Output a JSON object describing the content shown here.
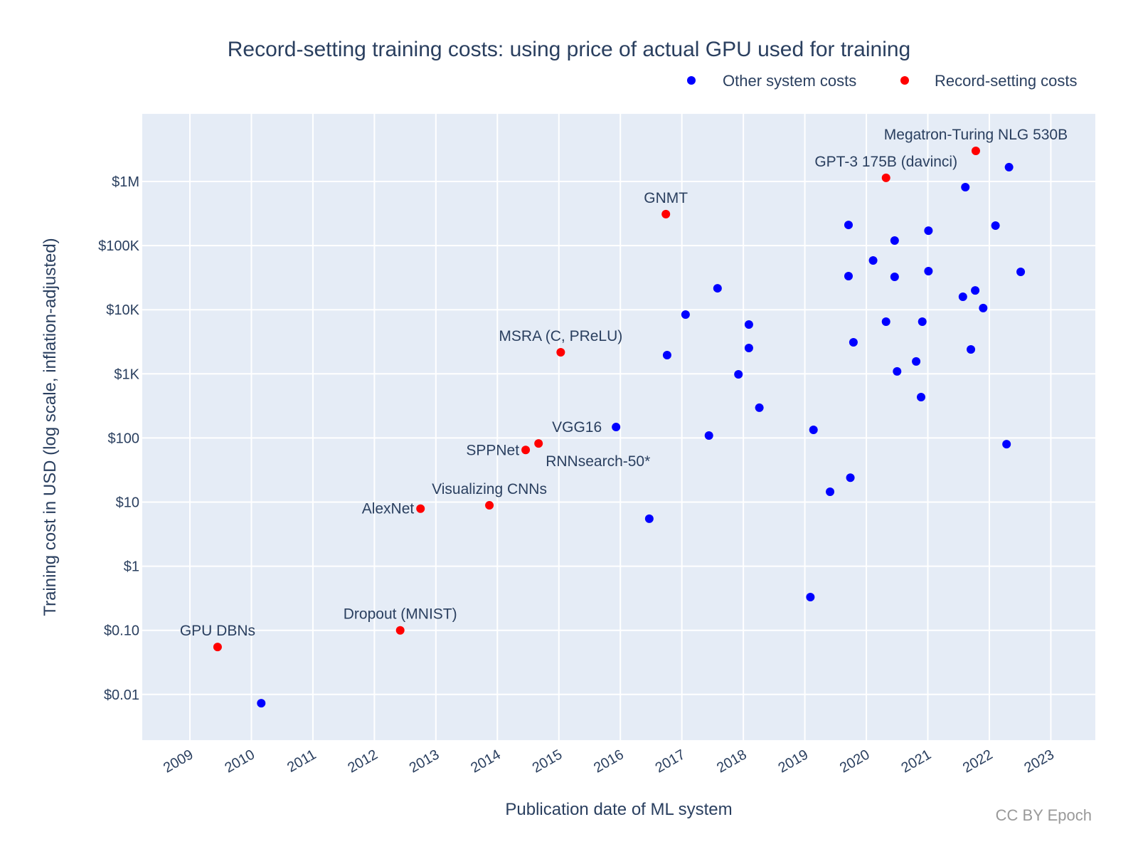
{
  "chart_data": {
    "type": "scatter",
    "title": "Record-setting training costs: using price of actual GPU used for training",
    "xlabel": "Publication date of ML system",
    "ylabel": "Training cost in USD (log scale, inflation-adjusted)",
    "y_scale": "log",
    "xlim": [
      2008.2,
      2023.7
    ],
    "ylim": [
      0.0023,
      9500000
    ],
    "grid": true,
    "legend_position": "top-right",
    "x_ticks": [
      2009,
      2010,
      2011,
      2012,
      2013,
      2014,
      2015,
      2016,
      2017,
      2018,
      2019,
      2020,
      2021,
      2022,
      2023
    ],
    "x_tick_labels": [
      "2009",
      "2010",
      "2011",
      "2012",
      "2013",
      "2014",
      "2015",
      "2016",
      "2017",
      "2018",
      "2019",
      "2020",
      "2021",
      "2022",
      "2023"
    ],
    "y_ticks": [
      0.01,
      0.1,
      1,
      10,
      100,
      1000,
      10000,
      100000,
      1000000
    ],
    "y_tick_labels": [
      "$0.01",
      "$0.10",
      "$1",
      "$10",
      "$100",
      "$1K",
      "$10K",
      "$100K",
      "$1M"
    ],
    "credit": "CC BY Epoch",
    "series": [
      {
        "name": "Other system costs",
        "color": "#0000ff",
        "points": [
          {
            "x": 2010.16,
            "y": 0.0073
          },
          {
            "x": 2015.93,
            "y": 148
          },
          {
            "x": 2016.47,
            "y": 5.5
          },
          {
            "x": 2016.76,
            "y": 1960
          },
          {
            "x": 2017.06,
            "y": 8400
          },
          {
            "x": 2017.44,
            "y": 109
          },
          {
            "x": 2017.58,
            "y": 21600
          },
          {
            "x": 2017.92,
            "y": 982
          },
          {
            "x": 2018.09,
            "y": 5870
          },
          {
            "x": 2018.09,
            "y": 2530
          },
          {
            "x": 2018.26,
            "y": 296
          },
          {
            "x": 2019.09,
            "y": 0.33
          },
          {
            "x": 2019.14,
            "y": 134
          },
          {
            "x": 2019.41,
            "y": 14.5
          },
          {
            "x": 2019.74,
            "y": 24
          },
          {
            "x": 2019.71,
            "y": 210000
          },
          {
            "x": 2019.71,
            "y": 33400
          },
          {
            "x": 2019.79,
            "y": 3100
          },
          {
            "x": 2020.11,
            "y": 58600
          },
          {
            "x": 2020.32,
            "y": 6510
          },
          {
            "x": 2020.46,
            "y": 120000
          },
          {
            "x": 2020.46,
            "y": 32600
          },
          {
            "x": 2020.5,
            "y": 1090
          },
          {
            "x": 2020.81,
            "y": 1560
          },
          {
            "x": 2020.89,
            "y": 434
          },
          {
            "x": 2020.91,
            "y": 6510
          },
          {
            "x": 2021.01,
            "y": 171000
          },
          {
            "x": 2021.01,
            "y": 40000
          },
          {
            "x": 2021.57,
            "y": 15900
          },
          {
            "x": 2021.61,
            "y": 815000
          },
          {
            "x": 2021.7,
            "y": 2400
          },
          {
            "x": 2021.77,
            "y": 20000
          },
          {
            "x": 2021.9,
            "y": 10600
          },
          {
            "x": 2022.1,
            "y": 205000
          },
          {
            "x": 2022.28,
            "y": 80
          },
          {
            "x": 2022.32,
            "y": 1670000
          },
          {
            "x": 2022.51,
            "y": 38900
          }
        ]
      },
      {
        "name": "Record-setting costs",
        "color": "#ff0000",
        "points": [
          {
            "x": 2009.45,
            "y": 0.055,
            "label": "GPU DBNs",
            "label_pos": "top"
          },
          {
            "x": 2012.42,
            "y": 0.1,
            "label": "Dropout (MNIST)",
            "label_pos": "top"
          },
          {
            "x": 2012.75,
            "y": 7.9,
            "label": "AlexNet",
            "label_pos": "left"
          },
          {
            "x": 2013.87,
            "y": 8.9,
            "label": "Visualizing CNNs",
            "label_pos": "top"
          },
          {
            "x": 2014.46,
            "y": 65,
            "label": "SPPNet",
            "label_pos": "left"
          },
          {
            "x": 2014.67,
            "y": 82,
            "label": "RNNsearch-50*",
            "label_pos": "bottom-right"
          },
          {
            "x": 2015.03,
            "y": 2170,
            "label": "MSRA (C, PReLU)",
            "label_pos": "top"
          },
          {
            "x": 2016.74,
            "y": 310000,
            "label": "GNMT",
            "label_pos": "top"
          },
          {
            "x": 2020.32,
            "y": 1140000,
            "label": "GPT-3 175B (davinci)",
            "label_pos": "top"
          },
          {
            "x": 2021.78,
            "y": 3000000,
            "label": "Megatron-Turing NLG 530B",
            "label_pos": "top"
          }
        ]
      }
    ],
    "extra_annotations": [
      {
        "text": "VGG16",
        "x": 2015.93,
        "y": 148,
        "label_pos": "left"
      }
    ]
  }
}
